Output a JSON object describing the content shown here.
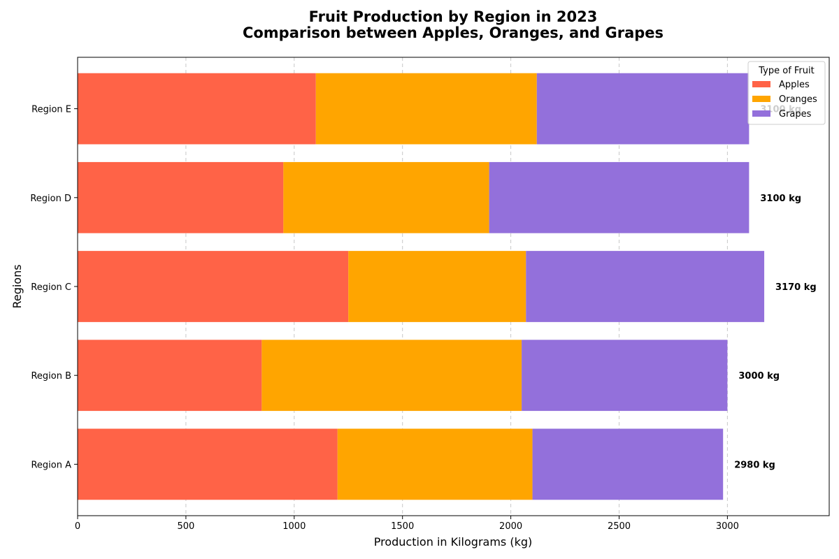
{
  "chart_data": {
    "type": "bar",
    "orientation": "horizontal",
    "stacked": true,
    "title": "Fruit Production by Region in 2023",
    "subtitle": "Comparison between Apples, Oranges, and Grapes",
    "xlabel": "Production in Kilograms (kg)",
    "ylabel": "Regions",
    "categories": [
      "Region A",
      "Region B",
      "Region C",
      "Region D",
      "Region E"
    ],
    "series": [
      {
        "name": "Apples",
        "color": "#ff6347",
        "values": [
          1200,
          850,
          1250,
          950,
          1100
        ]
      },
      {
        "name": "Oranges",
        "color": "#ffa500",
        "values": [
          900,
          1200,
          820,
          950,
          1020
        ]
      },
      {
        "name": "Grapes",
        "color": "#9370db",
        "values": [
          880,
          950,
          1100,
          1200,
          980
        ]
      }
    ],
    "totals": [
      "2980 kg",
      "3000 kg",
      "3170 kg",
      "3100 kg",
      "3100 kg"
    ],
    "xlim": [
      0,
      3470
    ],
    "xticks": [
      0,
      500,
      1000,
      1500,
      2000,
      2500,
      3000
    ],
    "grid": "x-dashed",
    "legend": {
      "title": "Type of Fruit",
      "placement": "top-right"
    }
  }
}
